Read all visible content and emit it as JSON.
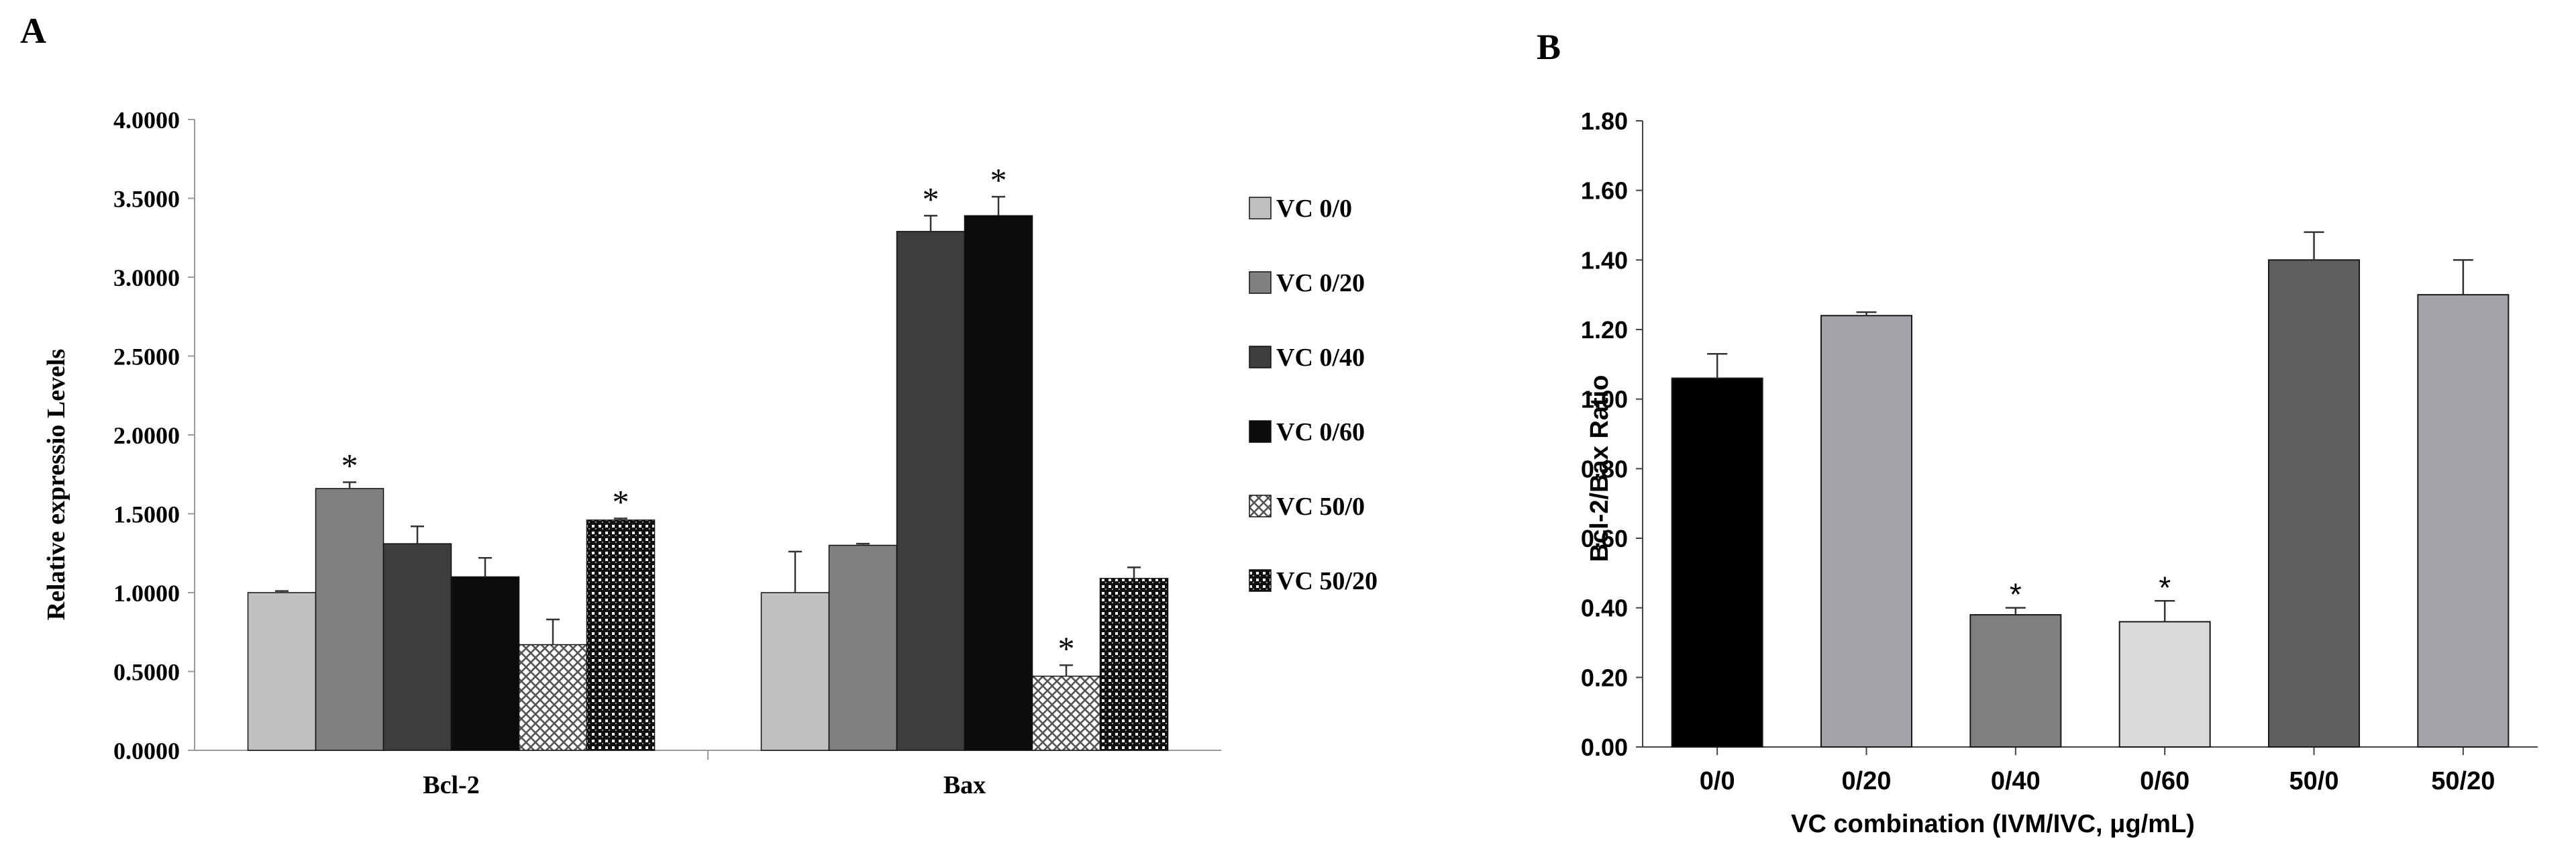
{
  "chart_data": [
    {
      "type": "bar",
      "panel_label": "A",
      "title": "",
      "xlabel": "",
      "ylabel": "Relative expressio  Levels",
      "ylim": [
        0,
        4
      ],
      "yticks": [
        "0.0000",
        "0.5000",
        "1.0000",
        "1.5000",
        "2.0000",
        "2.5000",
        "3.0000",
        "3.5000",
        "4.0000"
      ],
      "categories": [
        "Bcl-2",
        "Bax"
      ],
      "series": [
        {
          "name": "VC 0/0",
          "values": [
            1.0,
            1.0
          ],
          "errors": [
            0.01,
            0.26
          ],
          "significant": [
            false,
            false
          ],
          "fill": "#c0c0c0"
        },
        {
          "name": "VC 0/20",
          "values": [
            1.66,
            1.3
          ],
          "errors": [
            0.04,
            0.01
          ],
          "significant": [
            true,
            false
          ],
          "fill": "#808080"
        },
        {
          "name": "VC 0/40",
          "values": [
            1.31,
            3.29
          ],
          "errors": [
            0.11,
            0.1
          ],
          "significant": [
            false,
            true
          ],
          "fill": "#3d3d3d"
        },
        {
          "name": "VC 0/60",
          "values": [
            1.1,
            3.39
          ],
          "errors": [
            0.12,
            0.12
          ],
          "significant": [
            false,
            true
          ],
          "fill": "#0c0c0c"
        },
        {
          "name": "VC 50/0",
          "values": [
            0.67,
            0.47
          ],
          "errors": [
            0.16,
            0.07
          ],
          "significant": [
            false,
            true
          ],
          "fill": "pattern-cross"
        },
        {
          "name": "VC 50/20",
          "values": [
            1.46,
            1.09
          ],
          "errors": [
            0.01,
            0.07
          ],
          "significant": [
            true,
            false
          ],
          "fill": "pattern-dots"
        }
      ],
      "legend_position": "right"
    },
    {
      "type": "bar",
      "panel_label": "B",
      "title": "",
      "xlabel": "VC combination (IVM/IVC, μg/mL)",
      "ylabel": "Bcl-2/Bax Ratio",
      "ylim": [
        0,
        1.8
      ],
      "yticks": [
        "0.00",
        "0.20",
        "0.40",
        "0.60",
        "0.80",
        "1.00",
        "1.20",
        "1.40",
        "1.60",
        "1.80"
      ],
      "categories": [
        "0/0",
        "0/20",
        "0/40",
        "0/60",
        "50/0",
        "50/20"
      ],
      "values": [
        1.06,
        1.24,
        0.38,
        0.36,
        1.4,
        1.3
      ],
      "errors": [
        0.07,
        0.01,
        0.02,
        0.06,
        0.08,
        0.1
      ],
      "significant": [
        false,
        false,
        true,
        true,
        false,
        false
      ],
      "colors": [
        "#000000",
        "#a3a2a6",
        "#7f7f7f",
        "#d9d9d9",
        "#5f5f5f",
        "#a3a2a6"
      ]
    }
  ],
  "sig_marker": "*"
}
